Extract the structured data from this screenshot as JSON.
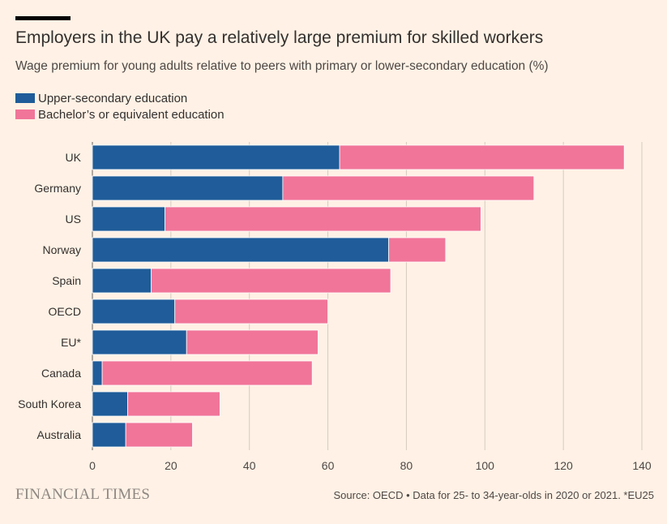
{
  "header": {
    "title": "Employers in the UK pay a relatively large premium for skilled workers",
    "subtitle": "Wage premium for young adults relative to peers with primary or lower-secondary education (%)"
  },
  "footer": {
    "brand": "FINANCIAL TIMES",
    "source": "Source: OECD • Data for 25- to 34-year-olds in 2020 or 2021. *EU25"
  },
  "colors": {
    "background": "#fff1e5",
    "upper_secondary": "#1f5c99",
    "bachelors": "#f17599",
    "grid": "#d6cbc0",
    "axis_text": "#4d4845"
  },
  "chart_data": {
    "type": "bar",
    "orientation": "horizontal",
    "stacked": true,
    "categories": [
      "UK",
      "Germany",
      "US",
      "Norway",
      "Spain",
      "OECD",
      "EU*",
      "Canada",
      "South Korea",
      "Australia"
    ],
    "series": [
      {
        "name": "Upper-secondary education",
        "values": [
          63,
          48.5,
          18.5,
          75.5,
          15,
          21,
          24,
          2.5,
          9,
          8.5
        ]
      },
      {
        "name": "Bachelor’s or equivalent education",
        "values": [
          72.5,
          64,
          80.5,
          14.5,
          61,
          39,
          33.5,
          53.5,
          23.5,
          17
        ]
      }
    ],
    "xticks": [
      0,
      20,
      40,
      60,
      80,
      100,
      120,
      140
    ],
    "xlim": [
      0,
      140
    ],
    "grid": "vertical",
    "legend_position": "top-left"
  }
}
